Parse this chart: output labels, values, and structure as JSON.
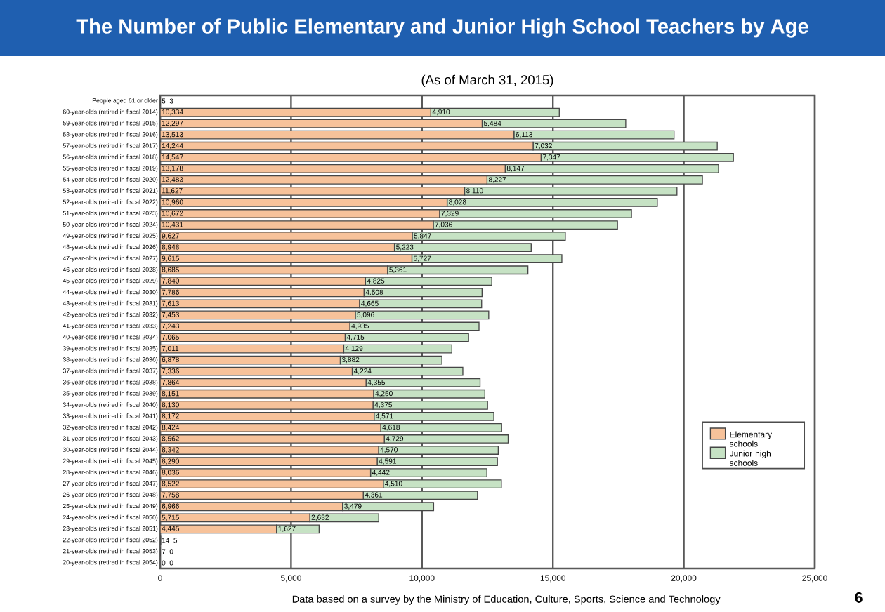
{
  "chart_data": {
    "type": "bar",
    "orientation": "horizontal",
    "stacked": true,
    "title": "The Number of Public Elementary and Junior High School Teachers by Age",
    "subtitle": "(As of March 31, 2015)",
    "annotations": [
      "Data based on a survey by the Ministry of Education, Culture, Sports, Science and Technology",
      "6"
    ],
    "categories": [
      "People aged 61 or older",
      "60-year-olds (retired in fiscal 2014)",
      "59-year-olds (retired in fiscal 2015)",
      "58-year-olds (retired in fiscal 2016)",
      "57-year-olds (retired in fiscal 2017)",
      "56-year-olds (retired in fiscal 2018)",
      "55-year-olds (retired in fiscal 2019)",
      "54-year-olds (retired in fiscal 2020)",
      "53-year-olds (retired in fiscal 2021)",
      "52-year-olds (retired in fiscal 2022)",
      "51-year-olds (retired in fiscal 2023)",
      "50-year-olds (retired in fiscal 2024)",
      "49-year-olds (retired in fiscal 2025)",
      "48-year-olds (retired in fiscal 2026)",
      "47-year-olds (retired in fiscal 2027)",
      "46-year-olds (retired in fiscal 2028)",
      "45-year-olds (retired in fiscal 2029)",
      "44-year-olds (retired in fiscal 2030)",
      "43-year-olds (retired in fiscal 2031)",
      "42-year-olds (retired in fiscal 2032)",
      "41-year-olds (retired in fiscal 2033)",
      "40-year-olds (retired in fiscal 2034)",
      "39-year-olds (retired in fiscal 2035)",
      "38-year-olds (retired in fiscal 2036)",
      "37-year-olds (retired in fiscal 2037)",
      "36-year-olds (retired in fiscal 2038)",
      "35-year-olds (retired in fiscal 2039)",
      "34-year-olds (retired in fiscal 2040)",
      "33-year-olds (retired in fiscal 2041)",
      "32-year-olds (retired in fiscal 2042)",
      "31-year-olds (retired in fiscal 2043)",
      "30-year-olds (retired in fiscal 2044)",
      "29-year-olds (retired in fiscal 2045)",
      "28-year-olds (retired in fiscal 2046)",
      "27-year-olds (retired in fiscal 2047)",
      "26-year-olds (retired in fiscal 2048)",
      "25-year-olds (retired in fiscal 2049)",
      "24-year-olds (retired in fiscal 2050)",
      "23-year-olds (retired in fiscal 2051)",
      "22-year-olds (retired in fiscal 2052)",
      "21-year-olds (retired in fiscal 2053)",
      "20-year-olds (retired in fiscal 2054)"
    ],
    "series": [
      {
        "name": "Elementary schools",
        "color": "#f7c29a",
        "values": [
          5,
          10334,
          12297,
          13513,
          14244,
          14547,
          13178,
          12483,
          11627,
          10960,
          10672,
          10431,
          9627,
          8948,
          9615,
          8685,
          7840,
          7786,
          7613,
          7453,
          7243,
          7065,
          7011,
          6878,
          7336,
          7864,
          8151,
          8130,
          8172,
          8424,
          8562,
          8342,
          8290,
          8036,
          8522,
          7758,
          6966,
          5715,
          4445,
          14,
          7,
          0
        ],
        "value_labels": [
          "5",
          "10,334",
          "12,297",
          "13,513",
          "14,244",
          "14,547",
          "13,178",
          "12,483",
          "11,627",
          "10,960",
          "10,672",
          "10,431",
          "9,627",
          "8,948",
          "9,615",
          "8,685",
          "7,840",
          "7,786",
          "7,613",
          "7,453",
          "7,243",
          "7,065",
          "7,011",
          "6,878",
          "7,336",
          "7,864",
          "8,151",
          "8,130",
          "8,172",
          "8,424",
          "8,562",
          "8,342",
          "8,290",
          "8,036",
          "8,522",
          "7,758",
          "6,966",
          "5,715",
          "4,445",
          "14",
          "7",
          "0"
        ]
      },
      {
        "name": "Junior high schools",
        "color": "#c6e2c4",
        "values": [
          3,
          4910,
          5484,
          6113,
          7032,
          7347,
          8147,
          8227,
          8110,
          8028,
          7329,
          7036,
          5847,
          5223,
          5727,
          5361,
          4825,
          4508,
          4665,
          5096,
          4935,
          4715,
          4129,
          3882,
          4224,
          4355,
          4250,
          4375,
          4571,
          4618,
          4729,
          4570,
          4591,
          4442,
          4510,
          4361,
          3479,
          2632,
          1627,
          5,
          0,
          0
        ],
        "value_labels": [
          "3",
          "4,910",
          "5,484",
          "6,113",
          "7,032",
          "7,347",
          "8,147",
          "8,227",
          "8,110",
          "8,028",
          "7,329",
          "7,036",
          "5,847",
          "5,223",
          "5,727",
          "5,361",
          "4,825",
          "4,508",
          "4,665",
          "5,096",
          "4,935",
          "4,715",
          "4,129",
          "3,882",
          "4,224",
          "4,355",
          "4,250",
          "4,375",
          "4,571",
          "4,618",
          "4,729",
          "4,570",
          "4,591",
          "4,442",
          "4,510",
          "4,361",
          "3,479",
          "2,632",
          "1,627",
          "5",
          "0",
          "0"
        ]
      }
    ],
    "xlim": [
      0,
      25000
    ],
    "xticks": [
      0,
      {
        "value": 5000,
        "label": "5,000"
      },
      {
        "value": 10000,
        "label": "10,000"
      },
      {
        "value": 15000,
        "label": "15,000"
      },
      {
        "value": 20000,
        "label": "20,000"
      },
      {
        "value": 25000,
        "label": "25,000"
      }
    ],
    "grid": "x",
    "legend": "bottom right"
  }
}
